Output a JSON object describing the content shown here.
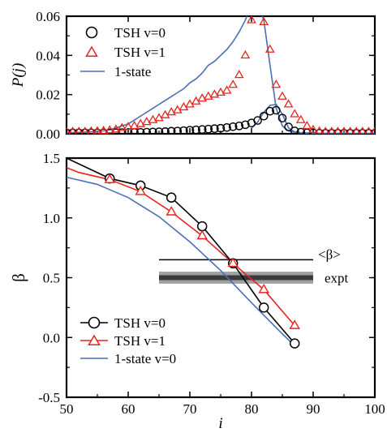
{
  "figure": {
    "title": ""
  },
  "chart_data": [
    {
      "type": "line",
      "panel": "top",
      "ylabel": "P(j)",
      "xlabel": "",
      "xlim": [
        50,
        100
      ],
      "ylim": [
        0,
        0.06
      ],
      "yticks": [
        "0.00",
        "0.02",
        "0.04",
        "0.06"
      ],
      "grid": false,
      "legend_position": "top-left",
      "series": [
        {
          "name": "TSH v=0",
          "marker": "circle",
          "color": "#000000",
          "line": false,
          "x": [
            50,
            51,
            52,
            53,
            54,
            55,
            56,
            57,
            58,
            59,
            60,
            61,
            62,
            63,
            64,
            65,
            66,
            67,
            68,
            69,
            70,
            71,
            72,
            73,
            74,
            75,
            76,
            77,
            78,
            79,
            80,
            81,
            82,
            83,
            84,
            85,
            86,
            87,
            88,
            89,
            90,
            91,
            92,
            93,
            94,
            95,
            96,
            97,
            98,
            99,
            100
          ],
          "values": [
            0.0005,
            0.0005,
            0.0005,
            0.0005,
            0.0005,
            0.0005,
            0.0005,
            0.0005,
            0.0005,
            0.0006,
            0.0006,
            0.0007,
            0.0007,
            0.0008,
            0.0009,
            0.001,
            0.0011,
            0.0013,
            0.0014,
            0.0016,
            0.0018,
            0.002,
            0.0022,
            0.0024,
            0.0026,
            0.0028,
            0.0032,
            0.0036,
            0.004,
            0.0046,
            0.0055,
            0.0068,
            0.009,
            0.0115,
            0.012,
            0.008,
            0.0035,
            0.0015,
            0.0008,
            0.0005,
            0.0004,
            0.0003,
            0.0003,
            0.0003,
            0.0003,
            0.0003,
            0.0003,
            0.0003,
            0.0003,
            0.0003,
            0.0003
          ]
        },
        {
          "name": "TSH v=1",
          "marker": "triangle",
          "color": "#e8231c",
          "line": false,
          "x": [
            50,
            51,
            52,
            53,
            54,
            55,
            56,
            57,
            58,
            59,
            60,
            61,
            62,
            63,
            64,
            65,
            66,
            67,
            68,
            69,
            70,
            71,
            72,
            73,
            74,
            75,
            76,
            77,
            78,
            79,
            80,
            81,
            82,
            83,
            84,
            85,
            86,
            87,
            88,
            89,
            90,
            91,
            92,
            93,
            94,
            95,
            96,
            97,
            98,
            99,
            100
          ],
          "values": [
            0.001,
            0.001,
            0.001,
            0.001,
            0.0012,
            0.0013,
            0.0015,
            0.0018,
            0.0022,
            0.003,
            0.0035,
            0.004,
            0.005,
            0.006,
            0.007,
            0.008,
            0.0095,
            0.011,
            0.012,
            0.0135,
            0.015,
            0.0165,
            0.018,
            0.019,
            0.02,
            0.021,
            0.022,
            0.025,
            0.03,
            0.04,
            0.058,
            0.062,
            0.057,
            0.043,
            0.025,
            0.019,
            0.015,
            0.01,
            0.007,
            0.004,
            0.002,
            0.0012,
            0.001,
            0.001,
            0.001,
            0.001,
            0.001,
            0.001,
            0.001,
            0.001,
            0.001
          ]
        },
        {
          "name": "1-state",
          "marker": "none",
          "color": "#4a6fb5",
          "line": true,
          "x": [
            50,
            52,
            54,
            56,
            57,
            58,
            60,
            61,
            62,
            63,
            64,
            65,
            66,
            67,
            68,
            69,
            70,
            71,
            72,
            73,
            74,
            75,
            76,
            77,
            78,
            79,
            80,
            81,
            82,
            83,
            84,
            85,
            86,
            87,
            88,
            90,
            95,
            100
          ],
          "values": [
            0.0005,
            0.0007,
            0.001,
            0.0015,
            0.002,
            0.003,
            0.005,
            0.007,
            0.009,
            0.011,
            0.013,
            0.015,
            0.017,
            0.019,
            0.021,
            0.023,
            0.026,
            0.028,
            0.031,
            0.035,
            0.037,
            0.04,
            0.043,
            0.047,
            0.052,
            0.058,
            0.066,
            0.066,
            0.058,
            0.035,
            0.013,
            0.004,
            0.0015,
            0.0008,
            0.0005,
            0.0003,
            0.0002,
            0.0002
          ]
        },
        {
          "name": "",
          "marker": "none",
          "color": "#4a6fb5",
          "line": true,
          "x": [
            80,
            81,
            82,
            83,
            84,
            85,
            86,
            87,
            88,
            90
          ],
          "values": [
            0.003,
            0.006,
            0.011,
            0.0145,
            0.015,
            0.01,
            0.003,
            0.001,
            0.0005,
            0.0003
          ]
        }
      ]
    },
    {
      "type": "line",
      "panel": "bottom",
      "ylabel": "β",
      "xlabel": "i",
      "xlim": [
        50,
        100
      ],
      "ylim": [
        -0.5,
        1.5
      ],
      "xticks": [
        "50",
        "60",
        "70",
        "80",
        "90",
        "100"
      ],
      "yticks": [
        "-0.5",
        "0.0",
        "0.5",
        "1.0",
        "1.5"
      ],
      "grid": false,
      "legend_position": "bottom-left",
      "series": [
        {
          "name": "TSH v=0",
          "marker": "circle",
          "color": "#000000",
          "line": true,
          "x": [
            50,
            57,
            62,
            67,
            72,
            77,
            82,
            87
          ],
          "values": [
            1.5,
            1.33,
            1.27,
            1.17,
            0.93,
            0.62,
            0.25,
            -0.05
          ]
        },
        {
          "name": "TSH v=1",
          "marker": "triangle",
          "color": "#e8231c",
          "line": true,
          "x": [
            50,
            52,
            57,
            62,
            67,
            72,
            77,
            82,
            87
          ],
          "values": [
            1.42,
            1.38,
            1.32,
            1.22,
            1.05,
            0.85,
            0.62,
            0.4,
            0.1
          ]
        },
        {
          "name": "1-state v=0",
          "marker": "none",
          "color": "#4a6fb5",
          "line": true,
          "x": [
            50,
            55,
            60,
            65,
            70,
            75,
            80,
            85,
            87
          ],
          "values": [
            1.34,
            1.28,
            1.17,
            1.01,
            0.8,
            0.56,
            0.29,
            0.03,
            -0.07
          ]
        }
      ],
      "annotations": {
        "mean_beta": {
          "label": "<β>",
          "value": 0.65,
          "x_range": [
            65,
            90
          ]
        },
        "expt": {
          "label": "expt",
          "value": 0.5,
          "band": [
            0.45,
            0.55
          ],
          "x_range": [
            65,
            90
          ]
        }
      }
    }
  ]
}
